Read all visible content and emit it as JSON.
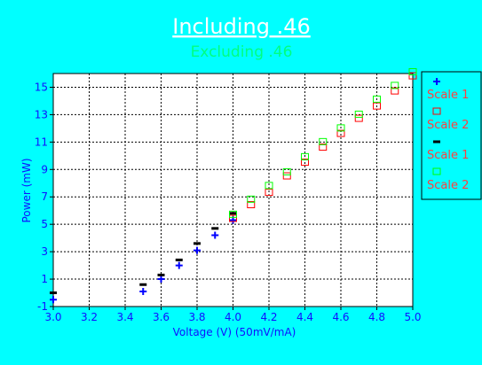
{
  "colors": {
    "background": "#00ffff",
    "plot_background": "#ffffff",
    "title": "#ffffff",
    "subtitle": "#00ff80",
    "axis_text": "#1010ff",
    "legend_text": "#ff4040",
    "legend_background": "#00ffff"
  },
  "chart_data": {
    "type": "scatter",
    "title": "Including .46",
    "subtitle": "Excluding .46",
    "xlabel": "Voltage (V) (50mV/mA)",
    "ylabel": "Power (mW)",
    "xlim": [
      3.0,
      5.0
    ],
    "ylim": [
      -1,
      16
    ],
    "x_ticks": [
      "3.0",
      "3.2",
      "3.4",
      "3.6",
      "3.8",
      "4.0",
      "4.2",
      "4.4",
      "4.6",
      "4.8",
      "5.0"
    ],
    "y_ticks": [
      "-1",
      "1",
      "3",
      "5",
      "7",
      "9",
      "11",
      "13",
      "15"
    ],
    "grid": true,
    "legend_position": "right",
    "series": [
      {
        "name": "Scale 1",
        "marker": "plus",
        "color": "#0000ff",
        "points": [
          [
            3.0,
            -0.5
          ],
          [
            3.5,
            0.1
          ],
          [
            3.6,
            1.0
          ],
          [
            3.7,
            2.0
          ],
          [
            3.8,
            3.1
          ],
          [
            3.9,
            4.2
          ],
          [
            4.0,
            5.3
          ]
        ]
      },
      {
        "name": "Scale 2",
        "marker": "square",
        "color": "#ff0000",
        "points": [
          [
            4.0,
            5.4
          ],
          [
            4.1,
            6.4
          ],
          [
            4.2,
            7.3
          ],
          [
            4.3,
            8.5
          ],
          [
            4.4,
            9.5
          ],
          [
            4.5,
            10.6
          ],
          [
            4.6,
            11.6
          ],
          [
            4.7,
            12.7
          ],
          [
            4.8,
            13.6
          ],
          [
            4.9,
            14.7
          ],
          [
            5.0,
            15.8
          ]
        ]
      },
      {
        "name": "Scale 1",
        "marker": "dash",
        "color": "#000000",
        "points": [
          [
            3.0,
            0.0
          ],
          [
            3.5,
            0.6
          ],
          [
            3.6,
            1.3
          ],
          [
            3.7,
            2.4
          ],
          [
            3.8,
            3.6
          ],
          [
            3.9,
            4.7
          ],
          [
            4.0,
            5.8
          ]
        ]
      },
      {
        "name": "Scale 2",
        "marker": "square",
        "color": "#00ff00",
        "points": [
          [
            4.0,
            5.7
          ],
          [
            4.1,
            6.8
          ],
          [
            4.2,
            7.8
          ],
          [
            4.3,
            8.8
          ],
          [
            4.4,
            9.9
          ],
          [
            4.5,
            11.0
          ],
          [
            4.6,
            12.0
          ],
          [
            4.7,
            13.0
          ],
          [
            4.8,
            14.1
          ],
          [
            4.9,
            15.1
          ],
          [
            5.0,
            16.1
          ]
        ]
      }
    ]
  }
}
